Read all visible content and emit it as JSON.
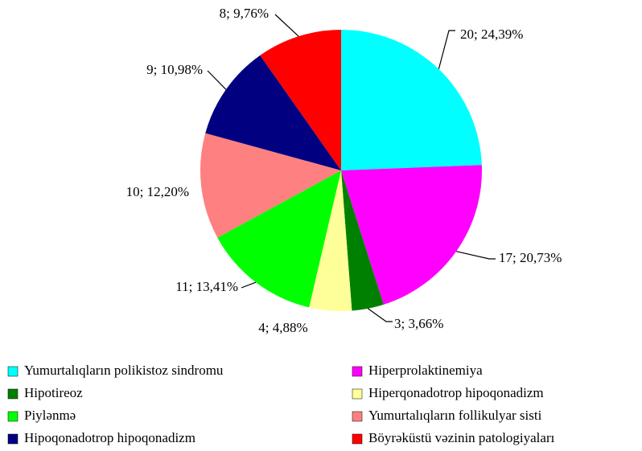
{
  "chart_data": {
    "type": "pie",
    "categories": [
      "Yumurtalıqların polikistoz sindromu",
      "Hiperprolaktinemiya",
      "Hipotireoz",
      "Hiperqonadotrop hipoqonadizm",
      "Piylənmə",
      "Yumurtalıqların follikulyar sisti",
      "Hipoqonadotrop hipoqonadizm",
      "Böyrəküstü vəzinin patologiyaları"
    ],
    "values": [
      20,
      17,
      3,
      4,
      11,
      10,
      9,
      8
    ],
    "value_labels": [
      "20; 24,39%",
      "17; 20,73%",
      "3; 3,66%",
      "4; 4,88%",
      "11; 13,41%",
      "10; 12,20%",
      "9; 10,98%",
      "8; 9,76%"
    ],
    "colors": [
      "#00ffff",
      "#ff00ff",
      "#008000",
      "#ffff99",
      "#00ff00",
      "#ff8080",
      "#000080",
      "#ff0000"
    ],
    "legend": "bottom"
  }
}
